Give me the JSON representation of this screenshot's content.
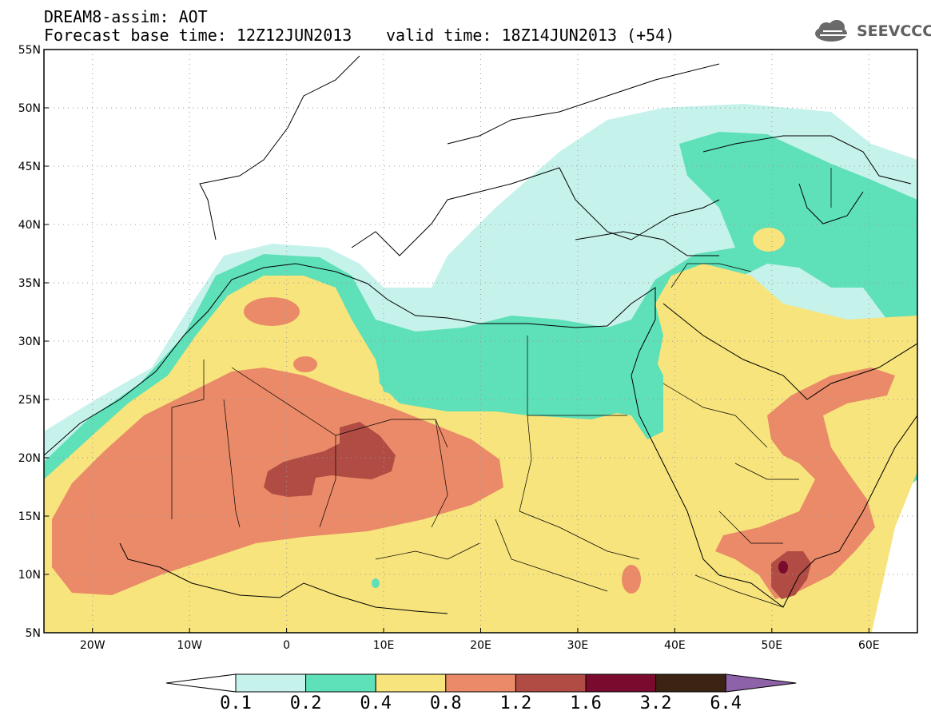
{
  "header": {
    "title": "DREAM8-assim: AOT",
    "base_time": "Forecast base time: 12Z12JUN2013",
    "valid_time": "valid time: 18Z14JUN2013 (+54)"
  },
  "logo": {
    "text": "SEEVCCC",
    "icon": "cloud-icon"
  },
  "map": {
    "lat_labels": [
      "55N",
      "50N",
      "45N",
      "40N",
      "35N",
      "30N",
      "25N",
      "20N",
      "15N",
      "10N",
      "5N"
    ],
    "lon_labels": [
      "20W",
      "10W",
      "0",
      "10E",
      "20E",
      "30E",
      "40E",
      "50E",
      "60E"
    ],
    "extent": {
      "lon": [
        -25,
        65
      ],
      "lat": [
        5,
        55
      ]
    },
    "grid": true
  },
  "colorbar": {
    "ticks": [
      "0.1",
      "0.2",
      "0.4",
      "0.8",
      "1.2",
      "1.6",
      "3.2",
      "6.4"
    ],
    "colors": [
      "#ffffff",
      "#c6f2ec",
      "#5ee0b8",
      "#f7e47c",
      "#ea8a68",
      "#b04c44",
      "#7a0a2e",
      "#3d2313",
      "#8e62a8"
    ]
  },
  "palette": {
    "c1": "#c6f2ec",
    "c2": "#5ee0b8",
    "c3": "#f7e47c",
    "c4": "#ea8a68",
    "c5": "#b04c44",
    "c6": "#7a0a2e"
  }
}
